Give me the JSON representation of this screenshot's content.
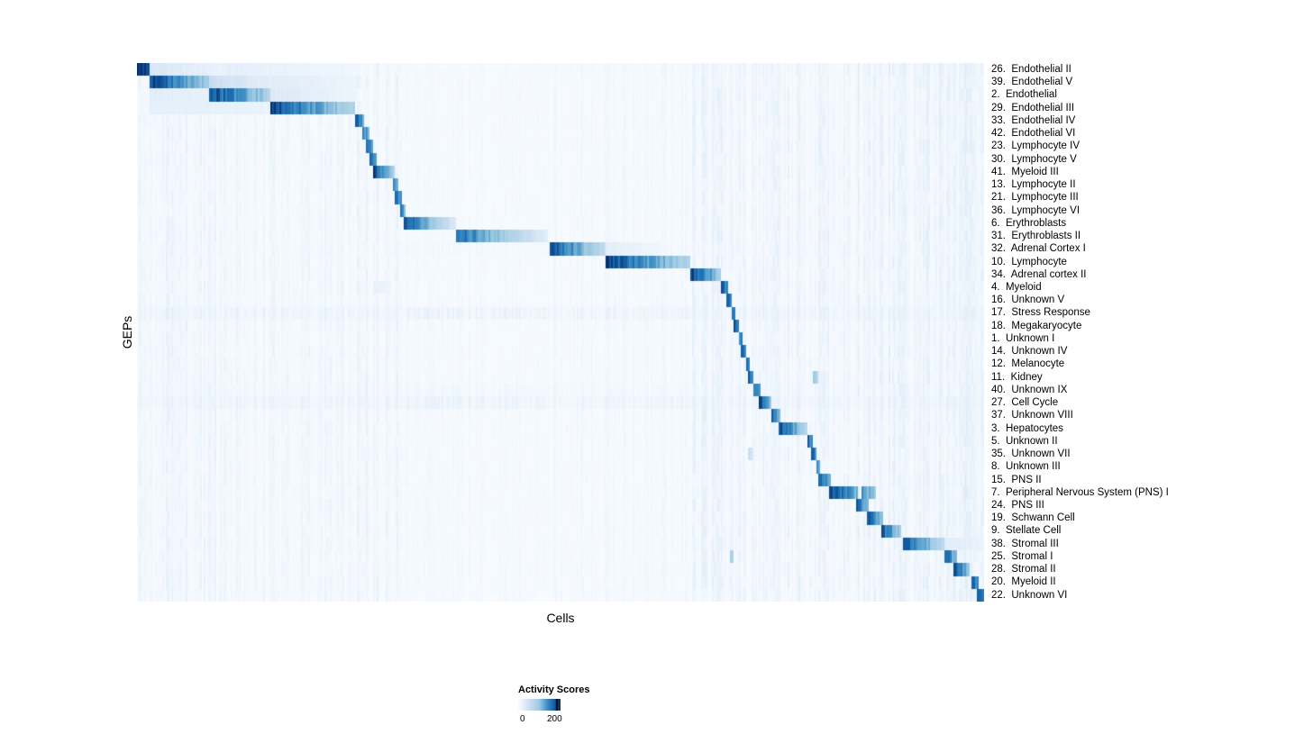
{
  "chart_data": {
    "type": "heatmap",
    "title": "",
    "xlabel": "Cells",
    "ylabel": "GEPs",
    "legend": {
      "title": "Activity Scores",
      "min_label": "0",
      "max_label": "200",
      "min": 0,
      "max": 200
    },
    "colorscale": {
      "stops": [
        [
          0.0,
          "#f7fbff"
        ],
        [
          0.12,
          "#e3eef9"
        ],
        [
          0.3,
          "#c6dbef"
        ],
        [
          0.5,
          "#9ecae1"
        ],
        [
          0.68,
          "#4292c6"
        ],
        [
          0.85,
          "#1361a9"
        ],
        [
          1.0,
          "#08306b"
        ]
      ]
    },
    "axis_ranges": {
      "x": "cells (unlabeled)",
      "y": "42 GEPs"
    },
    "grid": false,
    "legend_position": "bottom",
    "column_noise": [
      [
        0.0,
        0.105,
        0.05
      ],
      [
        0.105,
        0.26,
        0.04
      ],
      [
        0.26,
        0.32,
        0.05
      ],
      [
        0.32,
        0.49,
        0.018
      ],
      [
        0.49,
        0.56,
        0.03
      ],
      [
        0.56,
        0.655,
        0.03
      ],
      [
        0.655,
        0.7,
        0.06
      ],
      [
        0.7,
        0.76,
        0.05
      ],
      [
        0.76,
        0.835,
        0.06
      ],
      [
        0.835,
        0.915,
        0.06
      ],
      [
        0.915,
        1.0,
        0.07
      ]
    ],
    "rows": [
      {
        "label": "26.  Endothelial II",
        "band": 0,
        "segments": [
          [
            0.0,
            0.015,
            1.0,
            0.95
          ],
          [
            0.015,
            0.105,
            0.2,
            0.08
          ],
          [
            0.105,
            0.26,
            0.12,
            0.04
          ]
        ]
      },
      {
        "label": "39.  Endothelial V",
        "band": 0,
        "segments": [
          [
            0.014,
            0.085,
            1.0,
            0.5
          ],
          [
            0.085,
            0.16,
            0.3,
            0.12
          ],
          [
            0.16,
            0.26,
            0.15,
            0.06
          ]
        ]
      },
      {
        "label": "2.  Endothelial",
        "band": 0,
        "segments": [
          [
            0.085,
            0.157,
            1.0,
            0.45
          ],
          [
            0.014,
            0.085,
            0.14,
            0.1
          ],
          [
            0.157,
            0.26,
            0.18,
            0.06
          ]
        ]
      },
      {
        "label": "29.  Endothelial III",
        "band": 0,
        "segments": [
          [
            0.157,
            0.258,
            1.0,
            0.4
          ],
          [
            0.014,
            0.157,
            0.12,
            0.08
          ]
        ]
      },
      {
        "label": "33.  Endothelial IV",
        "band": 0,
        "segments": [
          [
            0.258,
            0.2675,
            0.9,
            0.65
          ]
        ]
      },
      {
        "label": "42.  Endothelial VI",
        "band": 0,
        "segments": [
          [
            0.2655,
            0.2745,
            0.85,
            0.6
          ]
        ]
      },
      {
        "label": "23.  Lymphocyte IV",
        "band": 0,
        "segments": [
          [
            0.2705,
            0.279,
            0.85,
            0.6
          ]
        ]
      },
      {
        "label": "30.  Lymphocyte V",
        "band": 0,
        "segments": [
          [
            0.2755,
            0.284,
            0.85,
            0.6
          ]
        ]
      },
      {
        "label": "41.  Myeloid III",
        "band": 0,
        "segments": [
          [
            0.279,
            0.3032,
            1.0,
            0.45
          ]
        ]
      },
      {
        "label": "13.  Lymphocyte II",
        "band": 0,
        "segments": [
          [
            0.3011,
            0.3085,
            0.9,
            0.65
          ]
        ]
      },
      {
        "label": "21.  Lymphocyte III",
        "band": 0,
        "segments": [
          [
            0.3053,
            0.3128,
            0.9,
            0.65
          ]
        ]
      },
      {
        "label": "36.  Lymphocyte VI",
        "band": 0,
        "segments": [
          [
            0.3106,
            0.317,
            0.85,
            0.6
          ]
        ]
      },
      {
        "label": "6.  Erythroblasts",
        "band": 0,
        "segments": [
          [
            0.3149,
            0.3766,
            0.95,
            0.18
          ]
        ]
      },
      {
        "label": "31.  Erythroblasts II",
        "band": 0,
        "segments": [
          [
            0.3766,
            0.4851,
            0.9,
            0.13
          ]
        ]
      },
      {
        "label": "32.  Adrenal Cortex I",
        "band": 0.04,
        "segments": [
          [
            0.4872,
            0.5532,
            1.0,
            0.32
          ],
          [
            0.5532,
            0.62,
            0.12,
            0.05
          ]
        ]
      },
      {
        "label": "10.  Lymphocyte",
        "band": 0,
        "segments": [
          [
            0.5532,
            0.6532,
            1.0,
            0.42
          ]
        ]
      },
      {
        "label": "34.  Adrenal cortex II",
        "band": 0,
        "segments": [
          [
            0.6532,
            0.6894,
            1.0,
            0.5
          ]
        ]
      },
      {
        "label": "4.  Myeloid",
        "band": 0,
        "segments": [
          [
            0.6883,
            0.698,
            0.95,
            0.7
          ],
          [
            0.279,
            0.3,
            0.1,
            0.06
          ]
        ]
      },
      {
        "label": "16.  Unknown V",
        "band": 0,
        "segments": [
          [
            0.6968,
            0.7021,
            0.9,
            0.7
          ]
        ]
      },
      {
        "label": "17.  Stress Response",
        "band": 0.1,
        "segments": [
          [
            0.7011,
            0.7064,
            0.95,
            0.75
          ]
        ]
      },
      {
        "label": "18.  Megakaryocyte",
        "band": 0,
        "segments": [
          [
            0.7053,
            0.7106,
            0.9,
            0.7
          ]
        ]
      },
      {
        "label": "1.  Unknown I",
        "band": 0,
        "segments": [
          [
            0.7096,
            0.7149,
            0.9,
            0.7
          ]
        ]
      },
      {
        "label": "14.  Unknown IV",
        "band": 0,
        "segments": [
          [
            0.7138,
            0.7191,
            0.9,
            0.7
          ]
        ]
      },
      {
        "label": "12.  Melanocyte",
        "band": 0,
        "segments": [
          [
            0.7181,
            0.7234,
            0.95,
            0.75
          ]
        ]
      },
      {
        "label": "11.  Kidney",
        "band": 0,
        "segments": [
          [
            0.7223,
            0.7287,
            0.95,
            0.75
          ],
          [
            0.7989,
            0.8043,
            0.5,
            0.35
          ]
        ]
      },
      {
        "label": "40.  Unknown IX",
        "band": 0.05,
        "segments": [
          [
            0.7277,
            0.7362,
            0.9,
            0.6
          ]
        ]
      },
      {
        "label": "27.  Cell Cycle",
        "band": 0.1,
        "segments": [
          [
            0.7351,
            0.7489,
            0.95,
            0.55
          ]
        ]
      },
      {
        "label": "37.  Unknown VIII",
        "band": 0,
        "segments": [
          [
            0.7479,
            0.7596,
            0.95,
            0.55
          ]
        ]
      },
      {
        "label": "3.  Hepatocytes",
        "band": 0,
        "segments": [
          [
            0.7585,
            0.7915,
            1.0,
            0.4
          ]
        ]
      },
      {
        "label": "5.  Unknown II",
        "band": 0,
        "segments": [
          [
            0.7915,
            0.7979,
            0.9,
            0.7
          ]
        ]
      },
      {
        "label": "35.  Unknown VII",
        "band": 0,
        "segments": [
          [
            0.7968,
            0.8021,
            0.9,
            0.7
          ],
          [
            0.7213,
            0.7266,
            0.3,
            0.2
          ]
        ]
      },
      {
        "label": "8.  Unknown III",
        "band": 0,
        "segments": [
          [
            0.8011,
            0.8064,
            0.9,
            0.7
          ]
        ]
      },
      {
        "label": "15.  PNS II",
        "band": 0,
        "segments": [
          [
            0.8053,
            0.8181,
            0.9,
            0.6
          ]
        ]
      },
      {
        "label": "7.  Peripheral Nervous System (PNS) I",
        "band": 0,
        "segments": [
          [
            0.817,
            0.8511,
            1.0,
            0.6
          ],
          [
            0.8553,
            0.8723,
            0.75,
            0.5
          ]
        ]
      },
      {
        "label": "24.  PNS III",
        "band": 0,
        "segments": [
          [
            0.8489,
            0.8628,
            0.95,
            0.6
          ]
        ]
      },
      {
        "label": "19.  Schwann Cell",
        "band": 0,
        "segments": [
          [
            0.8617,
            0.8809,
            0.95,
            0.5
          ]
        ]
      },
      {
        "label": "9.  Stellate Cell",
        "band": 0,
        "segments": [
          [
            0.8787,
            0.9021,
            0.95,
            0.45
          ]
        ]
      },
      {
        "label": "38.  Stromal III",
        "band": 0,
        "segments": [
          [
            0.9053,
            0.9532,
            1.0,
            0.32
          ],
          [
            0.9532,
            1.0,
            0.15,
            0.07
          ]
        ]
      },
      {
        "label": "25.  Stromal I",
        "band": 0,
        "segments": [
          [
            0.9532,
            0.9691,
            0.9,
            0.55
          ],
          [
            0.6998,
            0.7043,
            0.5,
            0.35
          ]
        ]
      },
      {
        "label": "28.  Stromal II",
        "band": 0,
        "segments": [
          [
            0.9638,
            0.983,
            0.95,
            0.55
          ]
        ]
      },
      {
        "label": "20.  Myeloid II",
        "band": 0,
        "segments": [
          [
            0.985,
            0.9936,
            0.9,
            0.7
          ]
        ]
      },
      {
        "label": "22.  Unknown VI",
        "band": 0,
        "segments": [
          [
            0.9915,
            1.0,
            1.0,
            0.8
          ]
        ]
      }
    ]
  }
}
